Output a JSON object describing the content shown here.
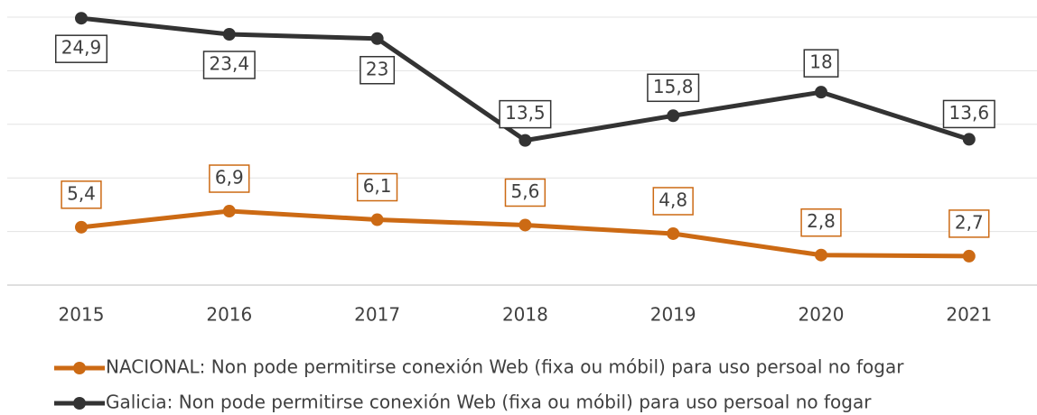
{
  "chart_data": {
    "type": "line",
    "categories": [
      "2015",
      "2016",
      "2017",
      "2018",
      "2019",
      "2020",
      "2021"
    ],
    "series": [
      {
        "name": "NACIONAL: Non pode permitirse conexión Web (fixa ou móbil) para uso persoal no fogar",
        "color": "#cc6a14",
        "values": [
          5.4,
          6.9,
          6.1,
          5.6,
          4.8,
          2.8,
          2.7
        ],
        "value_labels": [
          "5,4",
          "6,9",
          "6,1",
          "5,6",
          "4,8",
          "2,8",
          "2,7"
        ]
      },
      {
        "name": "Galicia: Non pode permitirse conexión Web (fixa ou móbil) para uso persoal no fogar",
        "color": "#333333",
        "values": [
          24.9,
          23.4,
          23,
          13.5,
          15.8,
          18,
          13.6
        ],
        "value_labels": [
          "24,9",
          "23,4",
          "23",
          "13,5",
          "15,8",
          "18",
          "13,6"
        ]
      }
    ],
    "ylim": [
      0,
      25
    ],
    "yticks": [
      0,
      5,
      10,
      15,
      20,
      25
    ],
    "grid": true
  }
}
